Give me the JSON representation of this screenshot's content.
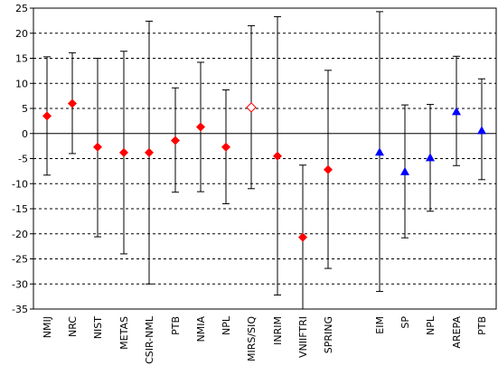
{
  "chart_data": {
    "type": "scatter",
    "title": "",
    "xlabel": "",
    "ylabel": "",
    "ylim": [
      -35,
      25
    ],
    "yticks": [
      25,
      20,
      15,
      10,
      5,
      0,
      -5,
      -10,
      -15,
      -20,
      -25,
      -30,
      -35
    ],
    "grid": "horizontal dashed",
    "colors": {
      "red": "#ff0000",
      "blue": "#0000ff",
      "hollow": "#ff0000",
      "axis": "#000000"
    },
    "categories": [
      "NMIJ",
      "NRC",
      "NIST",
      "METAS",
      "CSIR-NML",
      "PTB",
      "NMIA",
      "NPL",
      "MIRS/SIQ",
      "INRIM",
      "VNIIFTRI",
      "SPRING",
      "EIM",
      "SP",
      "NPL",
      "AREPA",
      "PTB"
    ],
    "groups": [
      0,
      0,
      0,
      0,
      0,
      0,
      0,
      0,
      0,
      0,
      0,
      0,
      1,
      1,
      1,
      1,
      1
    ],
    "markers": [
      "diamond",
      "diamond",
      "diamond",
      "diamond",
      "diamond",
      "diamond",
      "diamond",
      "diamond",
      "hollow-diamond",
      "diamond",
      "diamond",
      "diamond",
      "triangle",
      "triangle",
      "triangle",
      "triangle",
      "triangle"
    ],
    "values": [
      3.5,
      6.0,
      -2.7,
      -3.8,
      -3.8,
      -1.4,
      1.3,
      -2.7,
      5.2,
      -4.5,
      -20.7,
      -7.2,
      -3.7,
      -7.6,
      -4.8,
      4.4,
      0.6
    ],
    "upper": [
      15.3,
      16.1,
      15.0,
      16.4,
      22.4,
      9.1,
      14.2,
      8.7,
      21.5,
      23.3,
      -6.3,
      12.6,
      24.3,
      5.7,
      5.8,
      15.4,
      10.9
    ],
    "lower": [
      -8.3,
      -4.0,
      -20.6,
      -24.0,
      -30.0,
      -11.7,
      -11.6,
      -14.0,
      -11.0,
      -32.2,
      -35.0,
      -26.9,
      -31.5,
      -20.8,
      -15.5,
      -6.4,
      -9.2
    ]
  }
}
